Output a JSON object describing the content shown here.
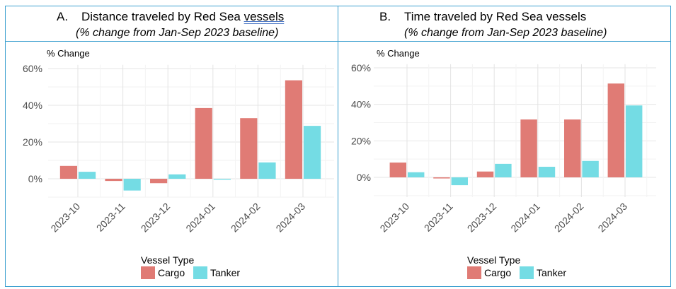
{
  "panels": [
    {
      "title_prefix": "A.",
      "title": "Distance traveled by Red Sea ",
      "title_underlined": "vessels",
      "subtitle": "(% change from Jan-Sep 2023 baseline)"
    },
    {
      "title_prefix": "B.",
      "title": "Time traveled by Red Sea vessels",
      "title_underlined": "",
      "subtitle": "(% change from Jan-Sep 2023 baseline)"
    }
  ],
  "chart_data": [
    {
      "type": "bar",
      "title": "Distance traveled by Red Sea vessels",
      "ylabel": "% Change",
      "xlabel": "",
      "categories": [
        "2023-10",
        "2023-11",
        "2023-12",
        "2024-01",
        "2024-02",
        "2024-03"
      ],
      "yticks": [
        "60%",
        "40%",
        "20%",
        "0%"
      ],
      "ylim": [
        -10,
        62
      ],
      "grid": true,
      "legend": {
        "title": "Vessel Type",
        "position": "bottom"
      },
      "series": [
        {
          "name": "Cargo",
          "color": "#e07b75",
          "values": [
            7.0,
            -1.2,
            -2.4,
            38.5,
            33.0,
            53.6
          ]
        },
        {
          "name": "Tanker",
          "color": "#74dce4",
          "values": [
            3.8,
            -6.4,
            2.4,
            -0.5,
            8.9,
            28.8
          ]
        }
      ]
    },
    {
      "type": "bar",
      "title": "Time traveled by Red Sea vessels",
      "ylabel": "% Change",
      "xlabel": "",
      "categories": [
        "2023-10",
        "2023-11",
        "2023-12",
        "2024-01",
        "2024-02",
        "2024-03"
      ],
      "yticks": [
        "60%",
        "40%",
        "20%",
        "0%"
      ],
      "ylim": [
        -10,
        62
      ],
      "grid": true,
      "legend": {
        "title": "Vessel Type",
        "position": "bottom"
      },
      "series": [
        {
          "name": "Cargo",
          "color": "#e07b75",
          "values": [
            8.1,
            -0.6,
            3.2,
            31.7,
            31.7,
            51.4
          ]
        },
        {
          "name": "Tanker",
          "color": "#74dce4",
          "values": [
            2.8,
            -4.3,
            7.4,
            5.8,
            9.0,
            39.4
          ]
        }
      ]
    }
  ]
}
